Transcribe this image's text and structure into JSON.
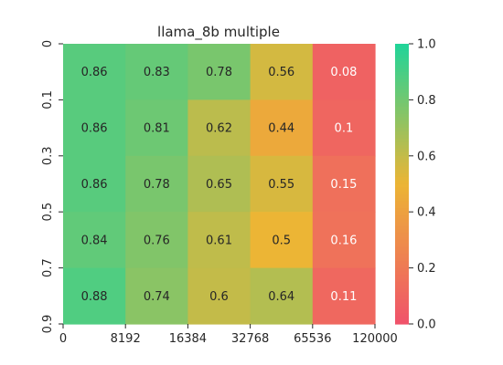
{
  "chart_data": {
    "type": "heatmap",
    "title": "llama_8b multiple",
    "x_tick_labels": [
      "0",
      "8192",
      "16384",
      "32768",
      "65536",
      "120000"
    ],
    "y_tick_labels": [
      "0",
      "0.1",
      "0.3",
      "0.5",
      "0.7",
      "0.9"
    ],
    "values": [
      [
        0.86,
        0.83,
        0.78,
        0.56,
        0.08
      ],
      [
        0.86,
        0.81,
        0.62,
        0.44,
        0.1
      ],
      [
        0.86,
        0.78,
        0.65,
        0.55,
        0.15
      ],
      [
        0.84,
        0.76,
        0.61,
        0.5,
        0.16
      ],
      [
        0.88,
        0.74,
        0.6,
        0.64,
        0.11
      ]
    ],
    "colorbar": {
      "min": 0.0,
      "max": 1.0,
      "tick_labels": [
        "0.0",
        "0.2",
        "0.4",
        "0.6",
        "0.8",
        "1.0"
      ],
      "colors": [
        "#f0526b",
        "#ecb535",
        "#1fd499"
      ]
    }
  }
}
